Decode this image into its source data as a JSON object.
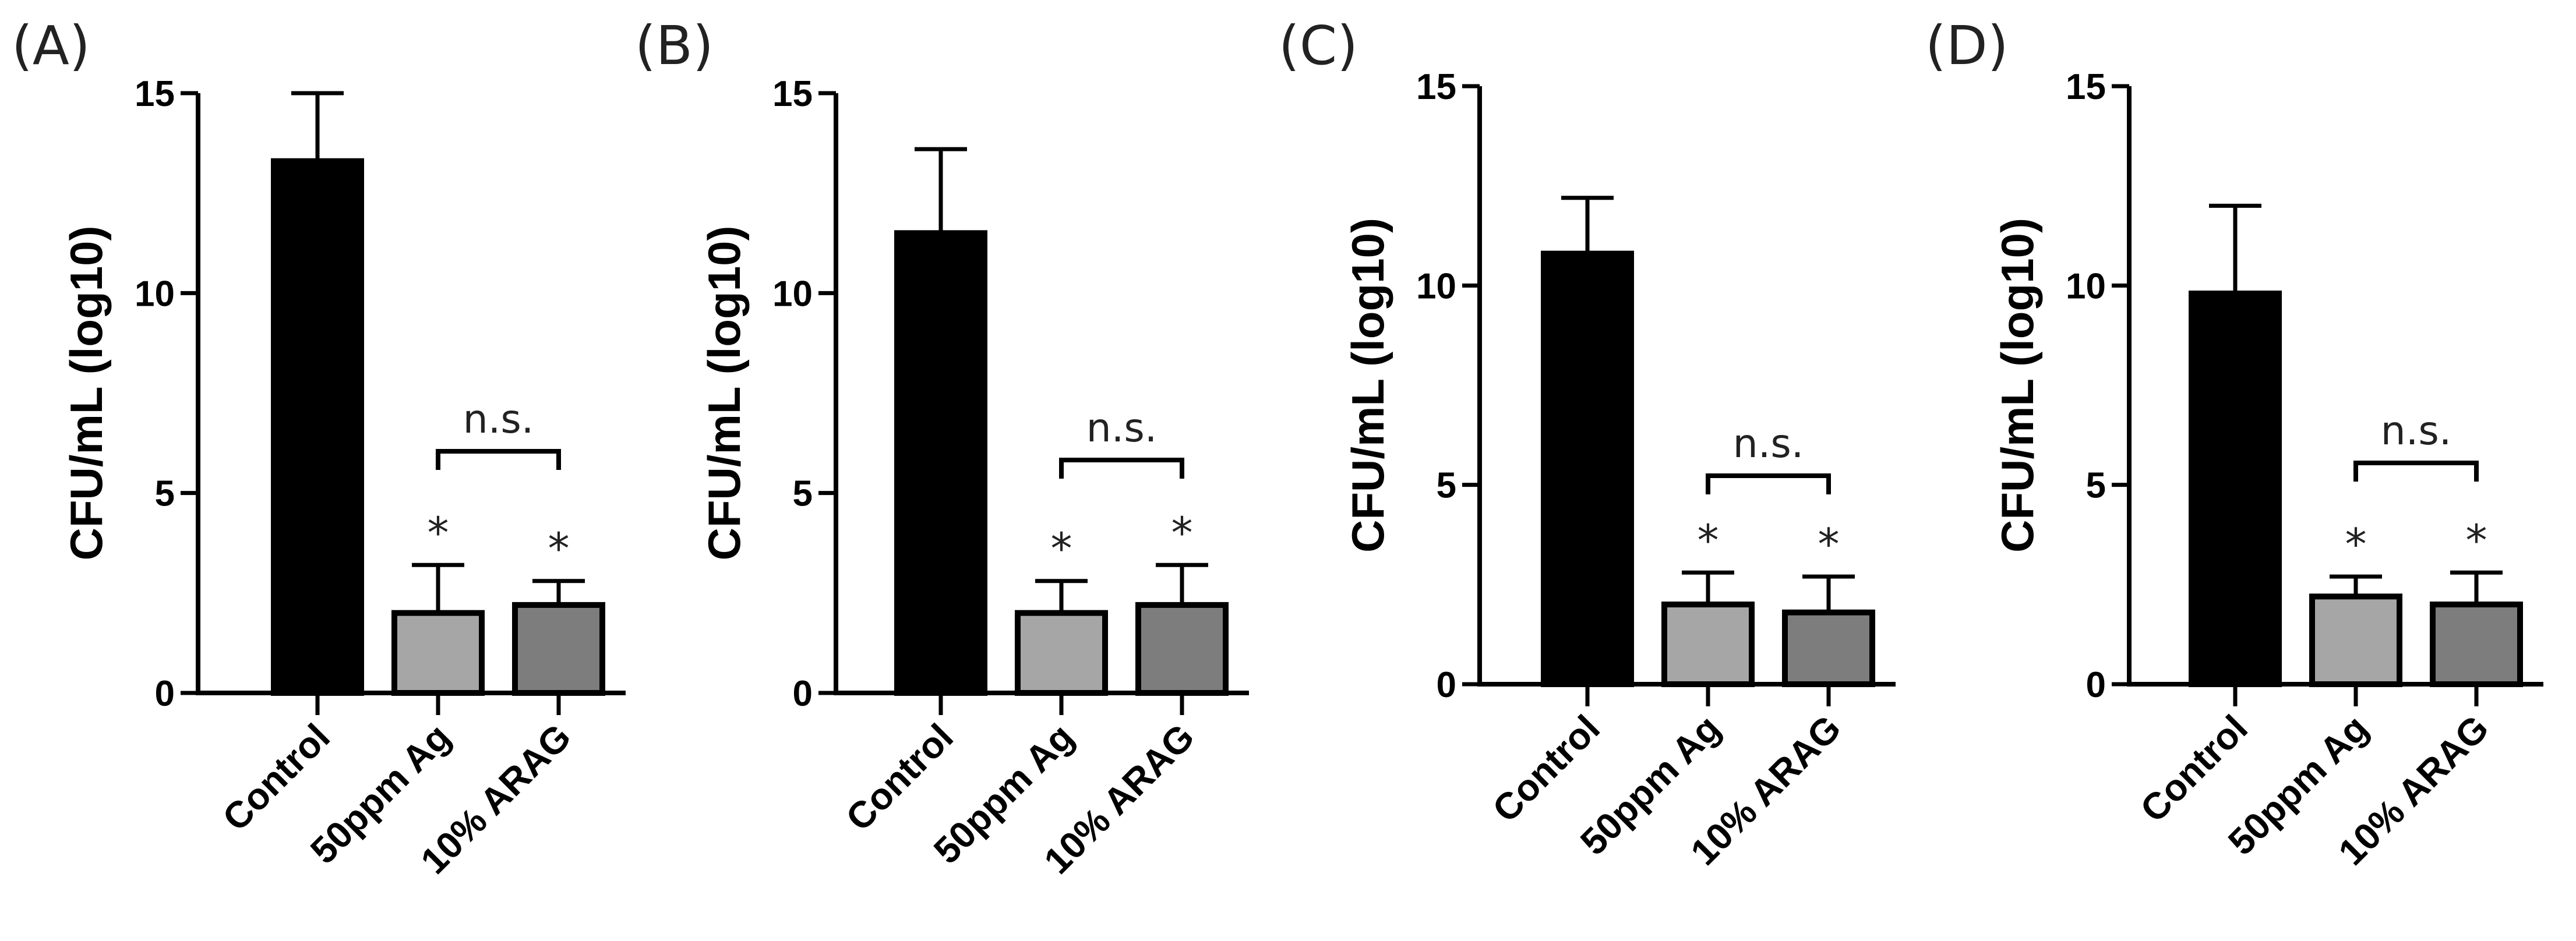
{
  "chart_data": [
    {
      "type": "bar",
      "panel_label": "(A)",
      "ylabel": "CFU/mL (log10)",
      "categories": [
        "Control",
        "50ppm Ag",
        "10% ARAG"
      ],
      "values": [
        13.3,
        2.0,
        2.2
      ],
      "errors": [
        1.7,
        1.2,
        0.6
      ],
      "colors": [
        "#000000",
        "#a6a6a6",
        "#7d7d7d"
      ],
      "significance": [
        "",
        "*",
        "*"
      ],
      "bracket": {
        "from": 1,
        "to": 2,
        "label": "n.s."
      },
      "ylim": [
        0,
        15
      ],
      "yticks": [
        0,
        5,
        10,
        15
      ]
    },
    {
      "type": "bar",
      "panel_label": "(B)",
      "ylabel": "CFU/mL (log10)",
      "categories": [
        "Control",
        "50ppm Ag",
        "10% ARAG"
      ],
      "values": [
        11.5,
        2.0,
        2.2
      ],
      "errors": [
        2.1,
        0.8,
        1.0
      ],
      "colors": [
        "#000000",
        "#a6a6a6",
        "#7d7d7d"
      ],
      "significance": [
        "",
        "*",
        "*"
      ],
      "bracket": {
        "from": 1,
        "to": 2,
        "label": "n.s."
      },
      "ylim": [
        0,
        15
      ],
      "yticks": [
        0,
        5,
        10,
        15
      ]
    },
    {
      "type": "bar",
      "panel_label": "(C)",
      "ylabel": "CFU/mL (log10)",
      "categories": [
        "Control",
        "50ppm Ag",
        "10% ARAG"
      ],
      "values": [
        10.8,
        2.0,
        1.8
      ],
      "errors": [
        1.4,
        0.8,
        0.9
      ],
      "colors": [
        "#000000",
        "#a6a6a6",
        "#7d7d7d"
      ],
      "significance": [
        "",
        "*",
        "*"
      ],
      "bracket": {
        "from": 1,
        "to": 2,
        "label": "n.s."
      },
      "ylim": [
        0,
        15
      ],
      "yticks": [
        0,
        5,
        10,
        15
      ]
    },
    {
      "type": "bar",
      "panel_label": "(D)",
      "ylabel": "CFU/mL (log10)",
      "categories": [
        "Control",
        "50ppm Ag",
        "10% ARAG"
      ],
      "values": [
        9.8,
        2.2,
        2.0
      ],
      "errors": [
        2.2,
        0.5,
        0.8
      ],
      "colors": [
        "#000000",
        "#a6a6a6",
        "#7d7d7d"
      ],
      "significance": [
        "",
        "*",
        "*"
      ],
      "bracket": {
        "from": 1,
        "to": 2,
        "label": "n.s."
      },
      "ylim": [
        0,
        15
      ],
      "yticks": [
        0,
        5,
        10,
        15
      ]
    }
  ]
}
